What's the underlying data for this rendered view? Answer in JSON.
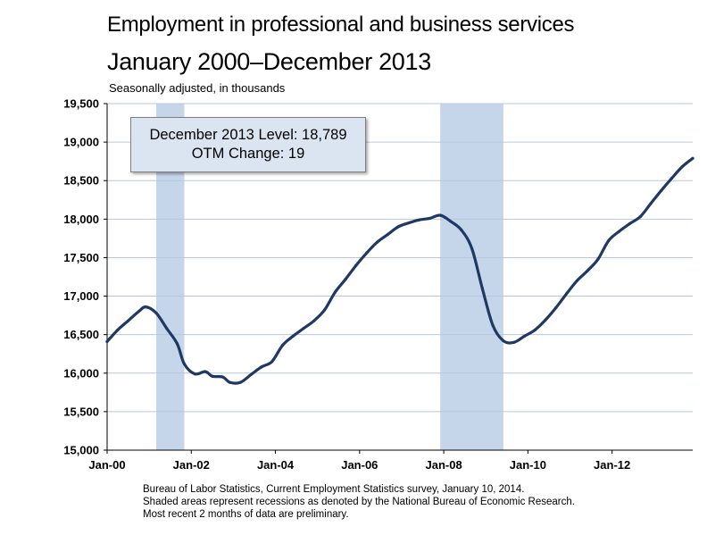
{
  "title_line1": "Employment in professional and business services",
  "title_line2": "January 2000–December 2013",
  "subtitle": "Seasonally adjusted, in thousands",
  "annotation": {
    "line1": "December 2013 Level: 18,789",
    "line2": "OTM Change: 19"
  },
  "footnotes": [
    "Bureau of Labor Statistics, Current Employment Statistics survey, January 10, 2014.",
    "Shaded areas represent recessions as denoted by the National Bureau of Economic Research.",
    "Most recent 2 months of data are preliminary."
  ],
  "colors": {
    "line": "#1f3864",
    "recession_shade": "#c5d5ea",
    "gridline": "#b8c7dd",
    "annotation_fill": "#dbe5f1"
  },
  "chart_data": {
    "type": "line",
    "title": "Employment in professional and business services",
    "subtitle": "January 2000–December 2013",
    "ylabel": "Seasonally adjusted, in thousands",
    "ylim": [
      15000,
      19500
    ],
    "yticks": [
      "15,000",
      "15,500",
      "16,000",
      "16,500",
      "17,000",
      "17,500",
      "18,000",
      "18,500",
      "19,000",
      "19,500"
    ],
    "ytick_values": [
      15000,
      15500,
      16000,
      16500,
      17000,
      17500,
      18000,
      18500,
      19000,
      19500
    ],
    "xlim": [
      "2000-01",
      "2013-12"
    ],
    "xticks": [
      "Jan-00",
      "Jan-02",
      "Jan-04",
      "Jan-06",
      "Jan-08",
      "Jan-10",
      "Jan-12"
    ],
    "xtick_dates": [
      "2000-01",
      "2002-01",
      "2004-01",
      "2006-01",
      "2008-01",
      "2010-01",
      "2012-01"
    ],
    "grid": true,
    "recessions": [
      [
        "2001-03",
        "2001-11"
      ],
      [
        "2007-12",
        "2009-06"
      ]
    ],
    "series": [
      {
        "points": [
          [
            "2000-01",
            16410
          ],
          [
            "2000-04",
            16560
          ],
          [
            "2000-07",
            16680
          ],
          [
            "2000-10",
            16800
          ],
          [
            "2000-12",
            16860
          ],
          [
            "2001-03",
            16780
          ],
          [
            "2001-06",
            16580
          ],
          [
            "2001-09",
            16380
          ],
          [
            "2001-11",
            16120
          ],
          [
            "2002-02",
            15990
          ],
          [
            "2002-05",
            16020
          ],
          [
            "2002-07",
            15960
          ],
          [
            "2002-10",
            15950
          ],
          [
            "2002-12",
            15880
          ],
          [
            "2003-03",
            15880
          ],
          [
            "2003-06",
            15980
          ],
          [
            "2003-09",
            16080
          ],
          [
            "2003-12",
            16150
          ],
          [
            "2004-03",
            16360
          ],
          [
            "2004-06",
            16480
          ],
          [
            "2004-09",
            16580
          ],
          [
            "2004-12",
            16680
          ],
          [
            "2005-03",
            16820
          ],
          [
            "2005-06",
            17050
          ],
          [
            "2005-09",
            17220
          ],
          [
            "2005-12",
            17400
          ],
          [
            "2006-03",
            17560
          ],
          [
            "2006-06",
            17700
          ],
          [
            "2006-09",
            17800
          ],
          [
            "2006-12",
            17900
          ],
          [
            "2007-03",
            17950
          ],
          [
            "2007-06",
            17990
          ],
          [
            "2007-09",
            18010
          ],
          [
            "2007-12",
            18050
          ],
          [
            "2008-03",
            17970
          ],
          [
            "2008-06",
            17860
          ],
          [
            "2008-09",
            17620
          ],
          [
            "2008-12",
            17100
          ],
          [
            "2009-03",
            16620
          ],
          [
            "2009-06",
            16420
          ],
          [
            "2009-09",
            16400
          ],
          [
            "2009-12",
            16480
          ],
          [
            "2010-03",
            16560
          ],
          [
            "2010-06",
            16690
          ],
          [
            "2010-09",
            16850
          ],
          [
            "2010-12",
            17030
          ],
          [
            "2011-03",
            17200
          ],
          [
            "2011-06",
            17330
          ],
          [
            "2011-09",
            17480
          ],
          [
            "2011-12",
            17720
          ],
          [
            "2012-03",
            17840
          ],
          [
            "2012-06",
            17940
          ],
          [
            "2012-09",
            18030
          ],
          [
            "2012-12",
            18200
          ],
          [
            "2013-03",
            18370
          ],
          [
            "2013-06",
            18530
          ],
          [
            "2013-09",
            18680
          ],
          [
            "2013-12",
            18789
          ]
        ]
      }
    ]
  }
}
